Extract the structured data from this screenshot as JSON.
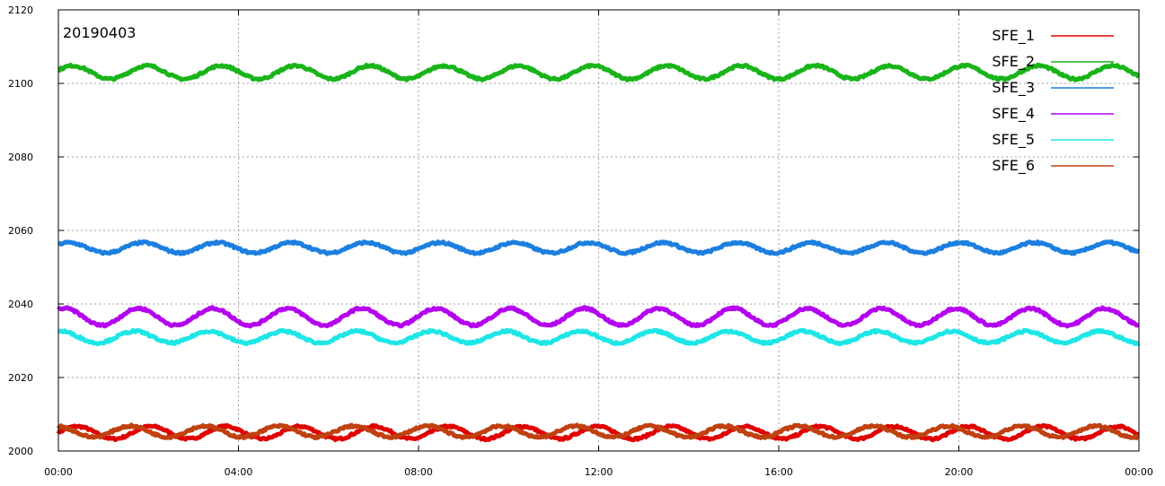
{
  "chart_data": {
    "type": "line",
    "title": "20190403",
    "xlabel": "",
    "ylabel": "",
    "x_ticks": [
      "00:00",
      "04:00",
      "08:00",
      "12:00",
      "16:00",
      "20:00",
      "00:00"
    ],
    "x_range_hours": [
      0,
      24
    ],
    "ylim": [
      2000,
      2120
    ],
    "y_ticks": [
      2000,
      2020,
      2040,
      2060,
      2080,
      2100,
      2120
    ],
    "grid": true,
    "legend_position": "top-right",
    "period_hours": 1.65,
    "series": [
      {
        "name": "SFE_1",
        "color": "#e00000",
        "mean": 2005.0,
        "amplitude": 1.7
      },
      {
        "name": "SFE_2",
        "color": "#19b419",
        "mean": 2103.0,
        "amplitude": 1.8
      },
      {
        "name": "SFE_3",
        "color": "#1c7fe0",
        "mean": 2055.3,
        "amplitude": 1.4
      },
      {
        "name": "SFE_4",
        "color": "#b400f0",
        "mean": 2036.5,
        "amplitude": 2.3
      },
      {
        "name": "SFE_5",
        "color": "#1ee6e6",
        "mean": 2031.0,
        "amplitude": 1.6
      },
      {
        "name": "SFE_6",
        "color": "#c04010",
        "mean": 2005.3,
        "amplitude": 1.5
      }
    ]
  }
}
